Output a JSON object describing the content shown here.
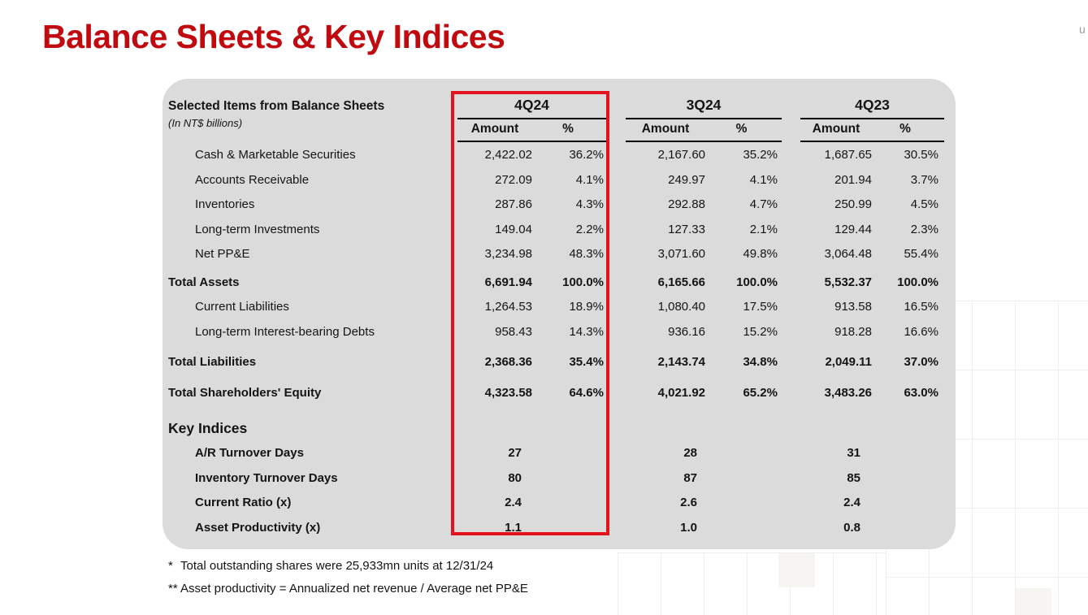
{
  "title": "Balance Sheets & Key Indices",
  "corner_text": "u",
  "colors": {
    "title_red": "#c00a10",
    "highlight_box_red": "#e2131c",
    "panel_gray": "#dbdbdb",
    "text": "#141414"
  },
  "table": {
    "caption_line1": "Selected Items from Balance Sheets",
    "caption_line2": "(In NT$ billions)",
    "col_groups": [
      {
        "label": "4Q24",
        "highlighted": true
      },
      {
        "label": "3Q24",
        "highlighted": false
      },
      {
        "label": "4Q23",
        "highlighted": false
      }
    ],
    "sub_headers": {
      "amount": "Amount",
      "pct": "%"
    },
    "rows": [
      {
        "label": "Cash & Marketable Securities",
        "indent": true,
        "bold": false,
        "values": [
          "2,422.02",
          "36.2%",
          "2,167.60",
          "35.2%",
          "1,687.65",
          "30.5%"
        ]
      },
      {
        "label": "Accounts Receivable",
        "indent": true,
        "bold": false,
        "values": [
          "272.09",
          "4.1%",
          "249.97",
          "4.1%",
          "201.94",
          "3.7%"
        ]
      },
      {
        "label": "Inventories",
        "indent": true,
        "bold": false,
        "values": [
          "287.86",
          "4.3%",
          "292.88",
          "4.7%",
          "250.99",
          "4.5%"
        ]
      },
      {
        "label": "Long-term Investments",
        "indent": true,
        "bold": false,
        "values": [
          "149.04",
          "2.2%",
          "127.33",
          "2.1%",
          "129.44",
          "2.3%"
        ]
      },
      {
        "label": "Net PP&E",
        "indent": true,
        "bold": false,
        "values": [
          "3,234.98",
          "48.3%",
          "3,071.60",
          "49.8%",
          "3,064.48",
          "55.4%"
        ]
      },
      {
        "label": "Total Assets",
        "indent": false,
        "bold": true,
        "values": [
          "6,691.94",
          "100.0%",
          "6,165.66",
          "100.0%",
          "5,532.37",
          "100.0%"
        ]
      },
      {
        "label": "Current Liabilities",
        "indent": true,
        "bold": false,
        "values": [
          "1,264.53",
          "18.9%",
          "1,080.40",
          "17.5%",
          "913.58",
          "16.5%"
        ]
      },
      {
        "label": "Long-term Interest-bearing Debts",
        "indent": true,
        "bold": false,
        "values": [
          "958.43",
          "14.3%",
          "936.16",
          "15.2%",
          "918.28",
          "16.6%"
        ]
      },
      {
        "label": "Total Liabilities",
        "indent": false,
        "bold": true,
        "values": [
          "2,368.36",
          "35.4%",
          "2,143.74",
          "34.8%",
          "2,049.11",
          "37.0%"
        ]
      },
      {
        "label": "Total Shareholders' Equity",
        "indent": false,
        "bold": true,
        "values": [
          "4,323.58",
          "64.6%",
          "4,021.92",
          "65.2%",
          "3,483.26",
          "63.0%"
        ]
      }
    ],
    "key_indices_heading": "Key Indices",
    "index_rows": [
      {
        "label": "A/R Turnover Days",
        "values": [
          "27",
          "28",
          "31"
        ]
      },
      {
        "label": "Inventory Turnover Days",
        "values": [
          "80",
          "87",
          "85"
        ]
      },
      {
        "label": "Current Ratio (x)",
        "values": [
          "2.4",
          "2.6",
          "2.4"
        ]
      },
      {
        "label": "Asset Productivity (x)",
        "values": [
          "1.1",
          "1.0",
          "0.8"
        ]
      }
    ]
  },
  "footnotes": [
    {
      "marker": "*",
      "text": "Total outstanding shares were 25,933mn units at 12/31/24"
    },
    {
      "marker": "**",
      "text": "Asset productivity = Annualized net revenue / Average net PP&E"
    }
  ]
}
